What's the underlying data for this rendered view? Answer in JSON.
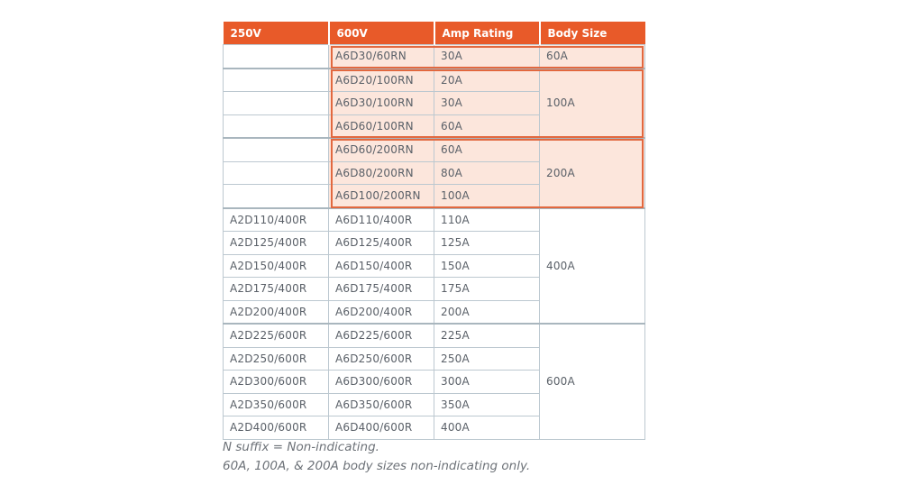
{
  "table": {
    "headers": [
      "250V",
      "600V",
      "Amp Rating",
      "Body Size"
    ],
    "groups": [
      {
        "body_size": "60A",
        "highlighted": true,
        "rows": [
          [
            "",
            "A6D30/60RN",
            "30A"
          ]
        ]
      },
      {
        "body_size": "100A",
        "highlighted": true,
        "rows": [
          [
            "",
            "A6D20/100RN",
            "20A"
          ],
          [
            "",
            "A6D30/100RN",
            "30A"
          ],
          [
            "",
            "A6D60/100RN",
            "60A"
          ]
        ]
      },
      {
        "body_size": "200A",
        "highlighted": true,
        "rows": [
          [
            "",
            "A6D60/200RN",
            "60A"
          ],
          [
            "",
            "A6D80/200RN",
            "80A"
          ],
          [
            "",
            "A6D100/200RN",
            "100A"
          ]
        ]
      },
      {
        "body_size": "400A",
        "highlighted": false,
        "rows": [
          [
            "A2D110/400R",
            "A6D110/400R",
            "110A"
          ],
          [
            "A2D125/400R",
            "A6D125/400R",
            "125A"
          ],
          [
            "A2D150/400R",
            "A6D150/400R",
            "150A"
          ],
          [
            "A2D175/400R",
            "A6D175/400R",
            "175A"
          ],
          [
            "A2D200/400R",
            "A6D200/400R",
            "200A"
          ]
        ]
      },
      {
        "body_size": "600A",
        "highlighted": false,
        "rows": [
          [
            "A2D225/600R",
            "A6D225/600R",
            "225A"
          ],
          [
            "A2D250/600R",
            "A6D250/600R",
            "250A"
          ],
          [
            "A2D300/600R",
            "A6D300/600R",
            "300A"
          ],
          [
            "A2D350/600R",
            "A6D350/600R",
            "350A"
          ],
          [
            "A2D400/600R",
            "A6D400/600R",
            "400A"
          ]
        ]
      }
    ]
  },
  "notes": [
    "N suffix = Non-indicating.",
    "60A, 100A, & 200A body sizes non-indicating only."
  ],
  "colors": {
    "header": "#e85a29",
    "highlight_fill": "#fce6dc",
    "highlight_border": "#e2683f"
  }
}
